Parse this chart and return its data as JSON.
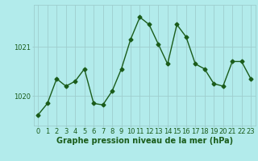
{
  "x": [
    0,
    1,
    2,
    3,
    4,
    5,
    6,
    7,
    8,
    9,
    10,
    11,
    12,
    13,
    14,
    15,
    16,
    17,
    18,
    19,
    20,
    21,
    22,
    23
  ],
  "y": [
    1019.62,
    1019.85,
    1020.35,
    1020.2,
    1020.3,
    1020.55,
    1019.85,
    1019.82,
    1020.1,
    1020.55,
    1021.15,
    1021.6,
    1021.45,
    1021.05,
    1020.65,
    1021.45,
    1021.2,
    1020.65,
    1020.55,
    1020.25,
    1020.2,
    1020.7,
    1020.7,
    1020.35
  ],
  "line_color": "#1a5c1a",
  "marker": "D",
  "markersize": 2.5,
  "linewidth": 1.0,
  "bg_color": "#b2ebeb",
  "plot_bg_color": "#b2ebeb",
  "grid_color": "#9ecece",
  "yticks": [
    1020,
    1021
  ],
  "ylim": [
    1019.4,
    1021.85
  ],
  "xlim": [
    -0.5,
    23.5
  ],
  "xlabel": "Graphe pression niveau de la mer (hPa)",
  "xlabel_color": "#1a5c1a",
  "xlabel_fontsize": 7.0,
  "tick_fontsize": 6.0,
  "tick_color": "#1a5c1a"
}
